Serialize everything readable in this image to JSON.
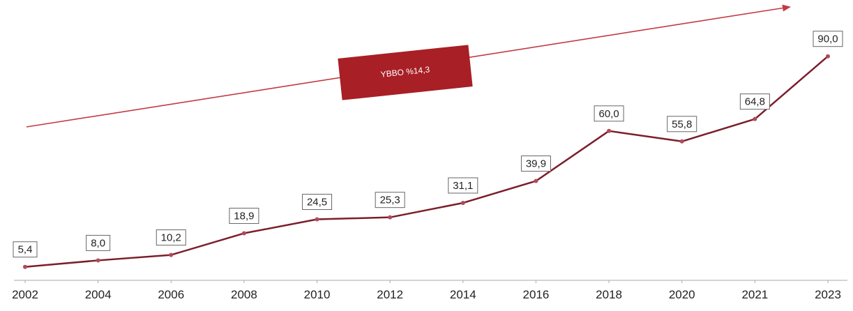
{
  "chart_data": {
    "type": "line",
    "categories": [
      "2002",
      "2004",
      "2006",
      "2008",
      "2010",
      "2012",
      "2014",
      "2016",
      "2018",
      "2020",
      "2021",
      "2023"
    ],
    "values": [
      5.4,
      8.0,
      10.2,
      18.9,
      24.5,
      25.3,
      31.1,
      39.9,
      60.0,
      55.8,
      64.8,
      90.0
    ],
    "data_labels": [
      "5,4",
      "8,0",
      "10,2",
      "18,9",
      "24,5",
      "25,3",
      "31,1",
      "39,9",
      "60,0",
      "55,8",
      "64,8",
      "90,0"
    ],
    "title": "",
    "xlabel": "",
    "ylabel": "",
    "ylim": [
      0,
      100
    ],
    "grid": false,
    "annotation": {
      "label": "YBBO %14,3",
      "kind": "trend-arrow"
    },
    "colors": {
      "line": "#7b1e2b",
      "point": "#b24a57",
      "arrow": "#c23a44",
      "badge": "#a81f26",
      "axis": "#aaaaaa"
    }
  }
}
